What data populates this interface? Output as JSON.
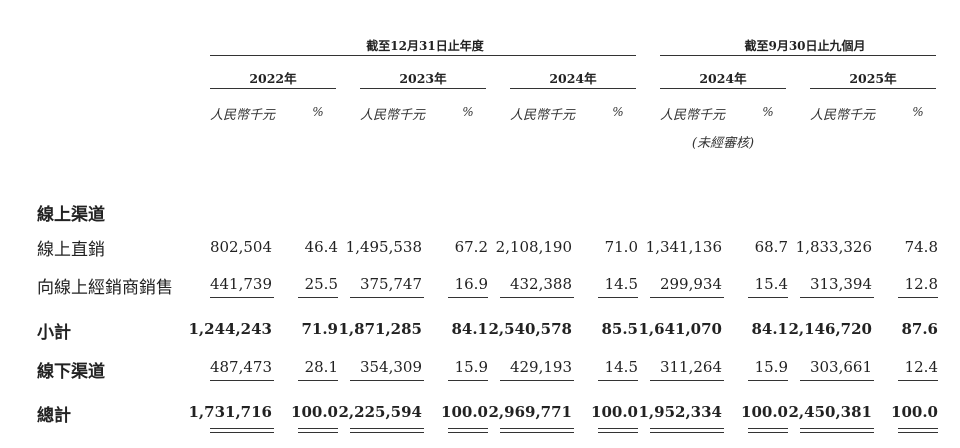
{
  "header": {
    "period_groups": [
      "截至12月31日止年度",
      "截至9月30日止九個月"
    ],
    "years": [
      "2022年",
      "2023年",
      "2024年",
      "2024年",
      "2025年"
    ],
    "amount_unit": "人民幣千元",
    "percent_unit": "%",
    "unaudited_note": "(未經審核)"
  },
  "sections": [
    {
      "title": "線上渠道",
      "rows": [
        {
          "label": "線上直銷",
          "bold": false,
          "values": [
            "802,504",
            "46.4",
            "1,495,538",
            "67.2",
            "2,108,190",
            "71.0",
            "1,341,136",
            "68.7",
            "1,833,326",
            "74.8"
          ]
        },
        {
          "label": "向線上經銷商銷售",
          "bold": false,
          "values": [
            "441,739",
            "25.5",
            "375,747",
            "16.9",
            "432,388",
            "14.5",
            "299,934",
            "15.4",
            "313,394",
            "12.8"
          ]
        },
        {
          "label": "小計",
          "bold": true,
          "values": [
            "1,244,243",
            "71.9",
            "1,871,285",
            "84.1",
            "2,540,578",
            "85.5",
            "1,641,070",
            "84.1",
            "2,146,720",
            "87.6"
          ]
        }
      ]
    }
  ],
  "offline": {
    "label": "線下渠道",
    "values": [
      "487,473",
      "28.1",
      "354,309",
      "15.9",
      "429,193",
      "14.5",
      "311,264",
      "15.9",
      "303,661",
      "12.4"
    ]
  },
  "total": {
    "label": "總計",
    "values": [
      "1,731,716",
      "100.0",
      "2,225,594",
      "100.0",
      "2,969,771",
      "100.0",
      "1,952,334",
      "100.0",
      "2,450,381",
      "100.0"
    ]
  }
}
